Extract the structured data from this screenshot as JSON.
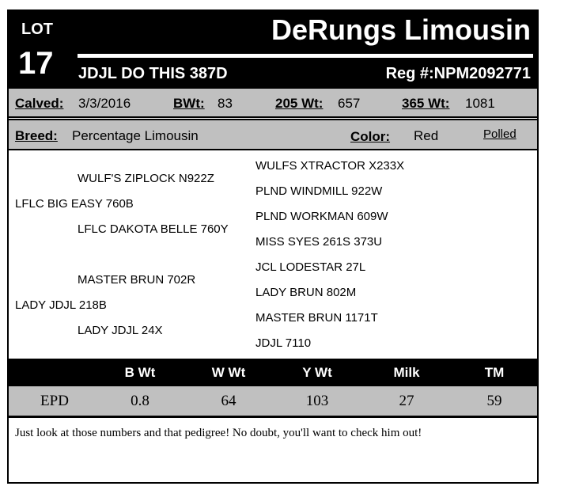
{
  "header": {
    "lot_label": "LOT",
    "lot_number": "17",
    "farm": "DeRungs Limousin",
    "animal_name": "JDJL DO THIS 387D",
    "reg": "Reg #:NPM2092771"
  },
  "info": {
    "calved_label": "Calved:",
    "calved": "3/3/2016",
    "bwt_label": "BWt:",
    "bwt": "83",
    "w205_label": "205 Wt:",
    "w205": "657",
    "w365_label": "365 Wt:",
    "w365": "1081",
    "breed_label": "Breed:",
    "breed": "Percentage Limousin",
    "color_label": "Color:",
    "color": "Red",
    "polled": "Polled"
  },
  "pedigree": {
    "sire": "LFLC BIG EASY 760B",
    "sire_sire": "WULF'S ZIPLOCK N922Z",
    "sire_dam": "LFLC DAKOTA BELLE 760Y",
    "dam": "LADY JDJL 218B",
    "dam_sire": "MASTER BRUN 702R",
    "dam_dam": "LADY JDJL 24X",
    "gg": [
      "WULFS XTRACTOR X233X",
      "PLND WINDMILL 922W",
      "PLND WORKMAN 609W",
      "MISS SYES 261S 373U",
      "JCL LODESTAR 27L",
      "LADY BRUN 802M",
      "MASTER BRUN 1171T",
      "JDJL 7110"
    ]
  },
  "epd": {
    "row_label": "EPD",
    "headers": [
      "B Wt",
      "W Wt",
      "Y Wt",
      "Milk",
      "TM"
    ],
    "values": [
      "0.8",
      "64",
      "103",
      "27",
      "59"
    ]
  },
  "comments": "Just look at those numbers and that pedigree! No doubt, you'll want to check him out!"
}
